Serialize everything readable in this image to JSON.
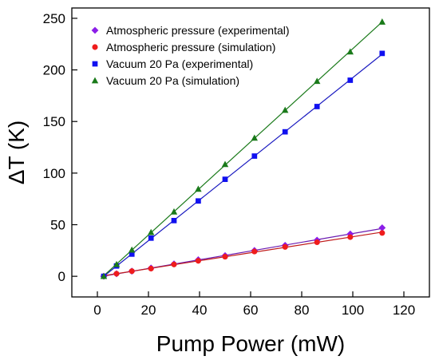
{
  "chart_data": {
    "type": "scatter",
    "xlabel": "Pump Power (mW)",
    "ylabel": "ΔT (K)",
    "xlim": [
      -10,
      130
    ],
    "ylim": [
      -20,
      260
    ],
    "x_ticks": [
      0,
      20,
      40,
      60,
      80,
      100,
      120
    ],
    "y_ticks": [
      0,
      50,
      100,
      150,
      200,
      250
    ],
    "grid": false,
    "legend_position": "top-left",
    "fit_lines": true,
    "series": [
      {
        "name": "Atmospheric pressure (experimental)",
        "marker": "diamond",
        "color": "#8b1ee8",
        "line_color": "#6b1bb0",
        "x": [
          2.5,
          7.5,
          13.5,
          21,
          30,
          39.5,
          50,
          61.5,
          73.5,
          86,
          99,
          111.5
        ],
        "y": [
          0,
          2.5,
          5,
          8,
          12,
          16,
          20,
          25,
          30,
          35,
          41,
          47
        ]
      },
      {
        "name": "Atmospheric pressure (simulation)",
        "marker": "circle",
        "color": "#ef1c1c",
        "line_color": "#c01a1a",
        "x": [
          2.5,
          7.5,
          13.5,
          21,
          30,
          39.5,
          50,
          61.5,
          73.5,
          86,
          99,
          111.5
        ],
        "y": [
          0,
          2.5,
          5,
          7.5,
          11.5,
          15,
          19,
          24,
          28.5,
          33,
          38,
          42
        ]
      },
      {
        "name": "Vacuum 20 Pa (experimental)",
        "marker": "square",
        "color": "#1010f0",
        "line_color": "#1a1ac0",
        "x": [
          2.5,
          7.5,
          13.5,
          21,
          30,
          39.5,
          50,
          61.5,
          73.5,
          86,
          99,
          111.5
        ],
        "y": [
          0,
          10,
          21.5,
          37,
          54,
          73,
          94,
          116.5,
          140,
          164.5,
          190,
          216
        ]
      },
      {
        "name": "Vacuum 20 Pa (simulation)",
        "marker": "triangle",
        "color": "#1a7a1a",
        "line_color": "#1a7a1a",
        "x": [
          2.5,
          7.5,
          13.5,
          21,
          30,
          39.5,
          50,
          61.5,
          73.5,
          86,
          99,
          111.5
        ],
        "y": [
          0,
          11.5,
          25.5,
          42.5,
          62.5,
          84.5,
          108.5,
          134,
          161,
          189,
          217.5,
          246.5
        ]
      }
    ]
  }
}
